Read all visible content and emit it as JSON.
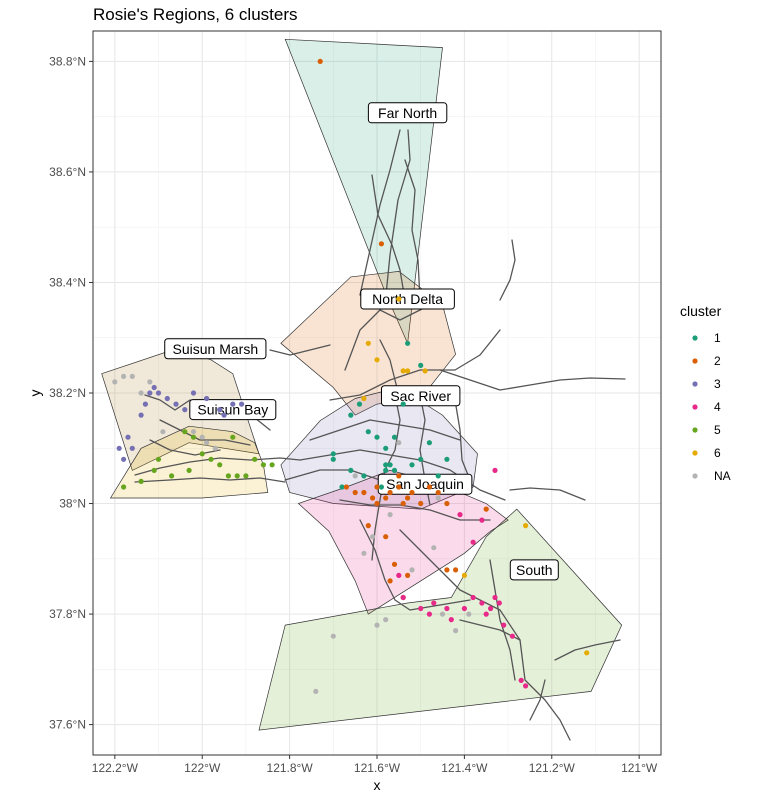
{
  "chart_data": {
    "type": "scatter",
    "title": "Rosie's Regions, 6 clusters",
    "xlabel": "x",
    "ylabel": "y",
    "xlim": [
      -122.25,
      -120.95
    ],
    "ylim": [
      37.545,
      38.855
    ],
    "x_ticks": [
      {
        "value": -122.2,
        "label": "122.2°W"
      },
      {
        "value": -122.0,
        "label": "122°W"
      },
      {
        "value": -121.8,
        "label": "121.8°W"
      },
      {
        "value": -121.6,
        "label": "121.6°W"
      },
      {
        "value": -121.4,
        "label": "121.4°W"
      },
      {
        "value": -121.2,
        "label": "121.2°W"
      },
      {
        "value": -121.0,
        "label": "121°W"
      }
    ],
    "y_ticks": [
      {
        "value": 37.6,
        "label": "37.6°N"
      },
      {
        "value": 37.8,
        "label": "37.8°N"
      },
      {
        "value": 38.0,
        "label": "38°N"
      },
      {
        "value": 38.2,
        "label": "38.2°N"
      },
      {
        "value": 38.4,
        "label": "38.4°N"
      },
      {
        "value": 38.6,
        "label": "38.6°N"
      },
      {
        "value": 38.8,
        "label": "38.8°N"
      }
    ],
    "grid": true,
    "legend": {
      "title": "cluster",
      "placement": "right"
    },
    "series": [
      {
        "name": "1",
        "color": "#1B9E77",
        "points": [
          [
            -121.66,
            38.16
          ],
          [
            -121.64,
            38.18
          ],
          [
            -121.7,
            38.09
          ],
          [
            -121.7,
            38.08
          ],
          [
            -121.68,
            38.03
          ],
          [
            -121.66,
            38.06
          ],
          [
            -121.63,
            38.05
          ],
          [
            -121.58,
            38.07
          ],
          [
            -121.58,
            38.06
          ],
          [
            -121.57,
            38.07
          ],
          [
            -121.56,
            38.06
          ],
          [
            -121.52,
            38.07
          ],
          [
            -121.5,
            38.08
          ],
          [
            -121.48,
            38.11
          ],
          [
            -121.44,
            38.08
          ],
          [
            -121.62,
            38.13
          ],
          [
            -121.6,
            38.12
          ],
          [
            -121.56,
            38.12
          ],
          [
            -121.54,
            38.18
          ],
          [
            -121.5,
            38.25
          ],
          [
            -121.53,
            38.29
          ],
          [
            -121.59,
            38.03
          ],
          [
            -121.46,
            38.05
          ],
          [
            -121.58,
            38.1
          ]
        ]
      },
      {
        "name": "2",
        "color": "#D95F02",
        "points": [
          [
            -121.73,
            38.8
          ],
          [
            -121.59,
            38.47
          ],
          [
            -121.65,
            38.02
          ],
          [
            -121.63,
            38.02
          ],
          [
            -121.61,
            38.01
          ],
          [
            -121.6,
            38.0
          ],
          [
            -121.58,
            38.01
          ],
          [
            -121.57,
            38.02
          ],
          [
            -121.55,
            38.03
          ],
          [
            -121.54,
            38.0
          ],
          [
            -121.53,
            38.01
          ],
          [
            -121.52,
            38.02
          ],
          [
            -121.5,
            38.0
          ],
          [
            -121.48,
            38.03
          ],
          [
            -121.46,
            38.02
          ],
          [
            -121.44,
            38.0
          ],
          [
            -121.62,
            37.96
          ],
          [
            -121.58,
            37.94
          ],
          [
            -121.56,
            37.89
          ],
          [
            -121.53,
            37.87
          ],
          [
            -121.44,
            37.88
          ],
          [
            -121.42,
            37.88
          ],
          [
            -121.54,
            37.83
          ],
          [
            -121.57,
            37.86
          ],
          [
            -121.35,
            37.99
          ],
          [
            -121.55,
            38.05
          ],
          [
            -121.6,
            38.03
          ],
          [
            -121.67,
            38.03
          ]
        ]
      },
      {
        "name": "3",
        "color": "#7570B3",
        "points": [
          [
            -122.14,
            38.16
          ],
          [
            -122.13,
            38.18
          ],
          [
            -122.12,
            38.2
          ],
          [
            -122.1,
            38.2
          ],
          [
            -122.08,
            38.19
          ],
          [
            -122.06,
            38.18
          ],
          [
            -122.04,
            38.17
          ],
          [
            -122.02,
            38.2
          ],
          [
            -121.99,
            38.19
          ],
          [
            -121.96,
            38.17
          ],
          [
            -121.95,
            38.16
          ],
          [
            -122.16,
            38.1
          ],
          [
            -122.18,
            38.08
          ],
          [
            -122.19,
            38.1
          ],
          [
            -122.17,
            38.12
          ],
          [
            -122.11,
            38.21
          ],
          [
            -121.93,
            38.18
          ],
          [
            -121.91,
            38.18
          ]
        ]
      },
      {
        "name": "4",
        "color": "#E7298A",
        "points": [
          [
            -121.55,
            37.87
          ],
          [
            -121.54,
            37.83
          ],
          [
            -121.5,
            37.81
          ],
          [
            -121.48,
            37.8
          ],
          [
            -121.47,
            37.82
          ],
          [
            -121.44,
            37.81
          ],
          [
            -121.43,
            37.79
          ],
          [
            -121.4,
            37.81
          ],
          [
            -121.38,
            37.83
          ],
          [
            -121.36,
            37.82
          ],
          [
            -121.35,
            37.8
          ],
          [
            -121.34,
            37.81
          ],
          [
            -121.33,
            37.83
          ],
          [
            -121.32,
            37.82
          ],
          [
            -121.31,
            37.78
          ],
          [
            -121.29,
            37.76
          ],
          [
            -121.27,
            37.68
          ],
          [
            -121.26,
            37.67
          ],
          [
            -121.33,
            38.06
          ],
          [
            -121.36,
            37.97
          ],
          [
            -121.38,
            37.93
          ],
          [
            -121.41,
            37.98
          ]
        ]
      },
      {
        "name": "5",
        "color": "#66A61E",
        "points": [
          [
            -122.04,
            38.13
          ],
          [
            -122.02,
            38.12
          ],
          [
            -122.0,
            38.09
          ],
          [
            -121.98,
            38.08
          ],
          [
            -121.96,
            38.07
          ],
          [
            -121.94,
            38.05
          ],
          [
            -121.92,
            38.05
          ],
          [
            -121.9,
            38.05
          ],
          [
            -121.88,
            38.08
          ],
          [
            -121.86,
            38.07
          ],
          [
            -121.84,
            38.07
          ],
          [
            -122.03,
            38.06
          ],
          [
            -122.07,
            38.05
          ],
          [
            -122.11,
            38.06
          ],
          [
            -122.14,
            38.04
          ],
          [
            -122.18,
            38.03
          ],
          [
            -122.1,
            38.08
          ],
          [
            -121.93,
            38.12
          ]
        ]
      },
      {
        "name": "6",
        "color": "#E6AB02",
        "points": [
          [
            -121.62,
            38.29
          ],
          [
            -121.63,
            38.19
          ],
          [
            -121.6,
            38.26
          ],
          [
            -121.55,
            38.37
          ],
          [
            -121.54,
            38.24
          ],
          [
            -121.53,
            38.24
          ],
          [
            -121.49,
            38.24
          ],
          [
            -121.4,
            37.87
          ],
          [
            -121.12,
            37.73
          ],
          [
            -121.26,
            37.96
          ]
        ]
      },
      {
        "name": "NA",
        "color": "#B3B3B3",
        "points": [
          [
            -121.74,
            37.66
          ],
          [
            -121.7,
            37.76
          ],
          [
            -121.6,
            37.78
          ],
          [
            -121.58,
            37.79
          ],
          [
            -121.42,
            37.77
          ],
          [
            -121.39,
            37.8
          ],
          [
            -121.45,
            37.8
          ],
          [
            -122.2,
            38.22
          ],
          [
            -122.18,
            38.23
          ],
          [
            -122.16,
            38.23
          ],
          [
            -122.14,
            38.2
          ],
          [
            -122.12,
            38.22
          ],
          [
            -122.09,
            38.13
          ],
          [
            -122.02,
            38.13
          ],
          [
            -122.0,
            38.12
          ],
          [
            -121.99,
            38.11
          ],
          [
            -121.97,
            38.1
          ],
          [
            -121.65,
            38.05
          ],
          [
            -121.63,
            37.91
          ],
          [
            -121.61,
            37.94
          ],
          [
            -121.57,
            37.98
          ],
          [
            -121.52,
            37.88
          ],
          [
            -121.47,
            37.92
          ],
          [
            -121.46,
            38.01
          ],
          [
            -121.55,
            38.11
          ]
        ]
      }
    ],
    "regions": [
      {
        "label": "Far North",
        "label_at": [
          -121.53,
          38.707
        ],
        "color": "#1B9E77",
        "polygon": [
          [
            -121.81,
            38.84
          ],
          [
            -121.45,
            38.825
          ],
          [
            -121.53,
            38.29
          ],
          [
            -121.58,
            38.38
          ]
        ]
      },
      {
        "label": "North Delta",
        "label_at": [
          -121.53,
          38.37
        ],
        "color": "#D95F02",
        "polygon": [
          [
            -121.82,
            38.29
          ],
          [
            -121.66,
            38.41
          ],
          [
            -121.55,
            38.42
          ],
          [
            -121.45,
            38.36
          ],
          [
            -121.42,
            38.27
          ],
          [
            -121.5,
            38.19
          ],
          [
            -121.6,
            38.18
          ],
          [
            -121.65,
            38.16
          ],
          [
            -121.7,
            38.21
          ]
        ]
      },
      {
        "label": "Suisun Marsh",
        "label_at": [
          -121.97,
          38.28
        ],
        "color": "#A6761D",
        "polygon": [
          [
            -122.23,
            38.235
          ],
          [
            -122.06,
            38.28
          ],
          [
            -121.98,
            38.26
          ],
          [
            -121.93,
            38.235
          ],
          [
            -121.87,
            38.09
          ],
          [
            -122.03,
            38.11
          ],
          [
            -122.16,
            38.06
          ]
        ]
      },
      {
        "label": "Suisun Bay",
        "label_at": [
          -121.93,
          38.17
        ],
        "color": "#E6AB02",
        "polygon": [
          [
            -122.21,
            38.01
          ],
          [
            -122.14,
            38.1
          ],
          [
            -122.03,
            38.14
          ],
          [
            -121.93,
            38.13
          ],
          [
            -121.88,
            38.11
          ],
          [
            -121.86,
            38.07
          ],
          [
            -121.85,
            38.02
          ],
          [
            -122.0,
            38.01
          ]
        ]
      },
      {
        "label": "Sac River",
        "label_at": [
          -121.5,
          38.195
        ],
        "color": "#7570B3",
        "polygon": [
          [
            -121.82,
            38.07
          ],
          [
            -121.73,
            38.15
          ],
          [
            -121.65,
            38.19
          ],
          [
            -121.55,
            38.21
          ],
          [
            -121.45,
            38.16
          ],
          [
            -121.37,
            38.09
          ],
          [
            -121.38,
            38.03
          ],
          [
            -121.5,
            37.99
          ],
          [
            -121.7,
            38.0
          ],
          [
            -121.8,
            38.02
          ]
        ]
      },
      {
        "label": "San Joaquin",
        "label_at": [
          -121.49,
          38.035
        ],
        "color": "#E7298A",
        "polygon": [
          [
            -121.78,
            38.0
          ],
          [
            -121.71,
            37.95
          ],
          [
            -121.65,
            37.86
          ],
          [
            -121.62,
            37.8
          ],
          [
            -121.52,
            37.85
          ],
          [
            -121.4,
            37.91
          ],
          [
            -121.34,
            37.95
          ],
          [
            -121.3,
            37.97
          ],
          [
            -121.35,
            38.0
          ],
          [
            -121.47,
            38.04
          ],
          [
            -121.57,
            38.06
          ],
          [
            -121.67,
            38.03
          ]
        ]
      },
      {
        "label": "South",
        "label_at": [
          -121.24,
          37.88
        ],
        "color": "#66A61E",
        "polygon": [
          [
            -121.81,
            37.78
          ],
          [
            -121.53,
            37.82
          ],
          [
            -121.43,
            37.83
          ],
          [
            -121.35,
            37.94
          ],
          [
            -121.28,
            37.99
          ],
          [
            -121.04,
            37.78
          ],
          [
            -121.11,
            37.66
          ],
          [
            -121.87,
            37.59
          ]
        ]
      }
    ]
  }
}
